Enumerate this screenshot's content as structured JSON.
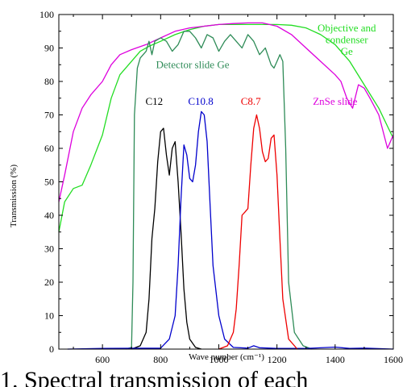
{
  "caption_text": "1.  Spectral transmission of each",
  "chart_data": {
    "type": "line",
    "title": "",
    "xlabel": "Wave number (cm⁻¹)",
    "ylabel": "Transmission (%)",
    "xlim": [
      450,
      1600
    ],
    "ylim": [
      0,
      100
    ],
    "x_ticks": [
      600,
      800,
      1000,
      1200,
      1400,
      1600
    ],
    "y_ticks": [
      0,
      10,
      20,
      30,
      40,
      50,
      60,
      70,
      80,
      90,
      100
    ],
    "grid": false,
    "legend": "none",
    "annotations": [
      {
        "text": "Objective and",
        "x": 1440,
        "y": 95,
        "color": "#22dd22"
      },
      {
        "text": "condenser",
        "x": 1440,
        "y": 91.5,
        "color": "#22dd22"
      },
      {
        "text": "Ge",
        "x": 1440,
        "y": 88,
        "color": "#22dd22"
      },
      {
        "text": "Detector slide Ge",
        "x": 910,
        "y": 84,
        "color": "#2e8b57"
      },
      {
        "text": "ZnSe slide",
        "x": 1400,
        "y": 73,
        "color": "#dd00dd"
      },
      {
        "text": "C12",
        "x": 778,
        "y": 73,
        "color": "#000000"
      },
      {
        "text": "C10.8",
        "x": 938,
        "y": 73,
        "color": "#0000cc"
      },
      {
        "text": "C8.7",
        "x": 1110,
        "y": 73,
        "color": "#ee0000"
      }
    ],
    "series": [
      {
        "color": "#22dd22",
        "x": [
          450,
          470,
          500,
          530,
          560,
          600,
          630,
          660,
          700,
          730,
          760,
          800,
          850,
          900,
          950,
          1000,
          1100,
          1200,
          1250,
          1300,
          1350,
          1400,
          1450,
          1500,
          1550,
          1600
        ],
        "y": [
          35,
          44,
          48,
          49,
          55,
          64,
          75,
          82,
          86,
          89,
          90.5,
          92,
          94,
          95.5,
          96.5,
          97,
          97,
          97,
          96.8,
          96,
          94,
          91,
          86,
          79,
          72,
          63
        ]
      },
      {
        "color": "#dd00dd",
        "x": [
          450,
          470,
          500,
          530,
          560,
          600,
          630,
          660,
          700,
          750,
          800,
          850,
          900,
          950,
          1000,
          1050,
          1100,
          1150,
          1200,
          1250,
          1300,
          1350,
          1400,
          1420,
          1440,
          1460,
          1480,
          1500,
          1520,
          1550,
          1580,
          1600
        ],
        "y": [
          44,
          52,
          65,
          72,
          76,
          80,
          85,
          88,
          89.5,
          91,
          93,
          95,
          96,
          96.5,
          97,
          97.3,
          97.5,
          97.5,
          96.5,
          94,
          90,
          86,
          82,
          80,
          75,
          72,
          79,
          78,
          75,
          70,
          60,
          64
        ]
      },
      {
        "color": "#2e8b57",
        "x": [
          680,
          700,
          705,
          710,
          720,
          730,
          750,
          760,
          770,
          780,
          800,
          820,
          840,
          860,
          880,
          900,
          920,
          940,
          960,
          980,
          1000,
          1020,
          1040,
          1060,
          1080,
          1100,
          1120,
          1140,
          1160,
          1180,
          1190,
          1200,
          1210,
          1220,
          1230,
          1240,
          1260,
          1290,
          1320
        ],
        "y": [
          0,
          0.5,
          20,
          70,
          84,
          87,
          89,
          92,
          88,
          92,
          93,
          92,
          89,
          91,
          95,
          95,
          93,
          90,
          94,
          93,
          89,
          92,
          94,
          92,
          90,
          94,
          92,
          88,
          90,
          85,
          84,
          86,
          88,
          86,
          60,
          20,
          5,
          1,
          0
        ]
      },
      {
        "color": "#000000",
        "x": [
          700,
          730,
          750,
          760,
          770,
          780,
          790,
          800,
          810,
          820,
          830,
          840,
          850,
          860,
          870,
          880,
          890,
          900,
          920,
          940
        ],
        "y": [
          0,
          1,
          5,
          15,
          33,
          42,
          56,
          65,
          66,
          58,
          52,
          60,
          62,
          50,
          35,
          18,
          8,
          3,
          0.5,
          0
        ]
      },
      {
        "color": "#0000cc",
        "x": [
          480,
          600,
          800,
          830,
          850,
          860,
          870,
          880,
          890,
          900,
          910,
          920,
          930,
          940,
          950,
          960,
          970,
          980,
          1000,
          1020,
          1050,
          1100,
          1120,
          1140,
          1200,
          1300,
          1400,
          1450,
          1500,
          1600
        ],
        "y": [
          0,
          0.2,
          0.3,
          3,
          10,
          25,
          45,
          61,
          58,
          51,
          50,
          55,
          65,
          71,
          70,
          62,
          43,
          25,
          10,
          3,
          0.5,
          0.3,
          1,
          0.4,
          0.2,
          0.2,
          0.6,
          0.2,
          0.3,
          0
        ]
      },
      {
        "color": "#ee0000",
        "x": [
          1000,
          1030,
          1050,
          1060,
          1070,
          1080,
          1090,
          1100,
          1110,
          1120,
          1130,
          1140,
          1150,
          1160,
          1170,
          1180,
          1190,
          1200,
          1210,
          1220,
          1240,
          1270
        ],
        "y": [
          0,
          1,
          5,
          12,
          25,
          40,
          41,
          42,
          55,
          66,
          70,
          66,
          59,
          56,
          57,
          63,
          64,
          52,
          33,
          15,
          3,
          0
        ]
      }
    ]
  }
}
